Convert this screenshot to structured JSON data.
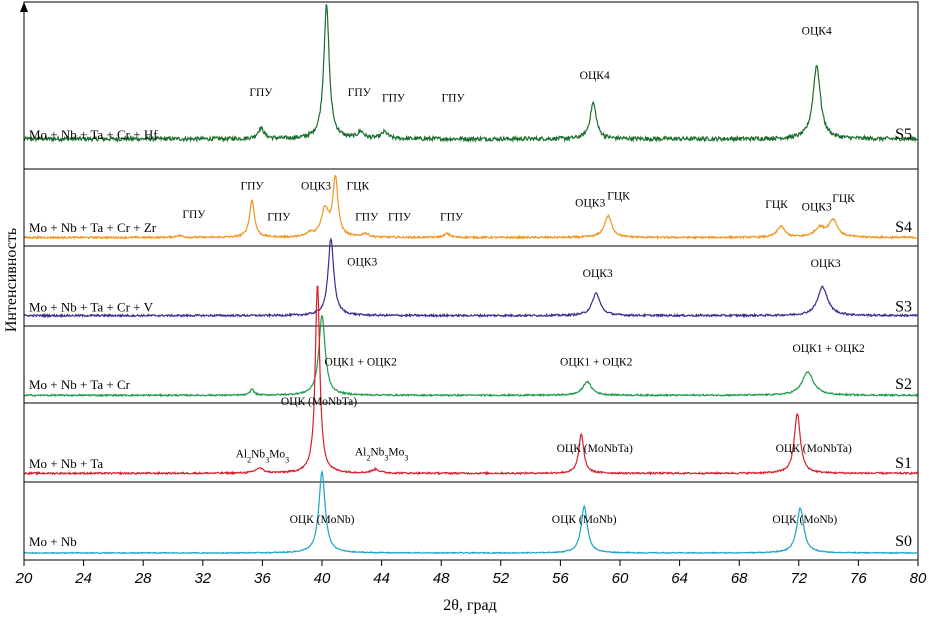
{
  "chart_data": {
    "type": "line",
    "xlabel": "2θ, град",
    "ylabel": "Интенсивность",
    "xlim": [
      20,
      80
    ],
    "xticks": [
      20,
      24,
      28,
      32,
      36,
      40,
      44,
      48,
      52,
      56,
      60,
      64,
      68,
      72,
      76,
      80
    ],
    "panels": [
      {
        "id": "S5",
        "composition": "Mo + Nb + Ta + Cr + Hf",
        "color": "#1a6e2e",
        "baseline": 0.18,
        "noise": 0.015,
        "peaks": [
          {
            "x": 35.9,
            "h": 0.08,
            "w": 0.25
          },
          {
            "x": 40.3,
            "h": 1.0,
            "w": 0.22
          },
          {
            "x": 42.6,
            "h": 0.05,
            "w": 0.25
          },
          {
            "x": 44.2,
            "h": 0.05,
            "w": 0.25
          },
          {
            "x": 58.2,
            "h": 0.27,
            "w": 0.25
          },
          {
            "x": 73.2,
            "h": 0.55,
            "w": 0.3
          }
        ],
        "annotations": [
          {
            "text": "ОЦК4",
            "x": 40.3,
            "h": 1.06
          },
          {
            "text": "ГПУ",
            "x": 35.9,
            "h": 0.32
          },
          {
            "text": "ГПУ",
            "x": 42.5,
            "h": 0.32
          },
          {
            "text": "ГПУ",
            "x": 44.8,
            "h": 0.28
          },
          {
            "text": "ГПУ",
            "x": 48.8,
            "h": 0.28
          },
          {
            "text": "ОЦК4",
            "x": 58.3,
            "h": 0.45
          },
          {
            "text": "ОЦК4",
            "x": 73.2,
            "h": 0.78
          }
        ]
      },
      {
        "id": "S4",
        "composition": "Mo + Nb + Ta + Cr + Zr",
        "color": "#f0941e",
        "baseline": 0.11,
        "noise": 0.015,
        "peaks": [
          {
            "x": 30.4,
            "h": 0.03,
            "w": 0.3
          },
          {
            "x": 35.3,
            "h": 0.6,
            "w": 0.2
          },
          {
            "x": 39.2,
            "h": 0.06,
            "w": 0.25
          },
          {
            "x": 40.2,
            "h": 0.45,
            "w": 0.3
          },
          {
            "x": 40.9,
            "h": 0.95,
            "w": 0.2
          },
          {
            "x": 42.9,
            "h": 0.06,
            "w": 0.25
          },
          {
            "x": 48.4,
            "h": 0.06,
            "w": 0.25
          },
          {
            "x": 59.2,
            "h": 0.35,
            "w": 0.3
          },
          {
            "x": 70.8,
            "h": 0.18,
            "w": 0.3
          },
          {
            "x": 73.4,
            "h": 0.15,
            "w": 0.4
          },
          {
            "x": 74.3,
            "h": 0.28,
            "w": 0.35
          }
        ],
        "annotations": [
          {
            "text": "ГПУ",
            "x": 35.3,
            "h": 0.78
          },
          {
            "text": "ГПУ",
            "x": 31.4,
            "h": 0.32
          },
          {
            "text": "ГПУ",
            "x": 37.1,
            "h": 0.28
          },
          {
            "text": "ОЦК3",
            "x": 39.6,
            "h": 0.78
          },
          {
            "text": "ГЦК",
            "x": 42.4,
            "h": 0.78
          },
          {
            "text": "ГПУ",
            "x": 43.0,
            "h": 0.28
          },
          {
            "text": "ГПУ",
            "x": 45.2,
            "h": 0.28
          },
          {
            "text": "ГПУ",
            "x": 48.7,
            "h": 0.28
          },
          {
            "text": "ОЦК3",
            "x": 58.0,
            "h": 0.5
          },
          {
            "text": "ГЦК",
            "x": 59.9,
            "h": 0.62
          },
          {
            "text": "ГЦК",
            "x": 70.5,
            "h": 0.48
          },
          {
            "text": "ОЦК3",
            "x": 73.2,
            "h": 0.44
          },
          {
            "text": "ГЦК",
            "x": 75.0,
            "h": 0.58
          }
        ]
      },
      {
        "id": "S3",
        "composition": "Mo + Nb + Ta + Cr + V",
        "color": "#3d2a8e",
        "baseline": 0.13,
        "noise": 0.015,
        "peaks": [
          {
            "x": 40.6,
            "h": 1.2,
            "w": 0.23
          },
          {
            "x": 58.4,
            "h": 0.35,
            "w": 0.32
          },
          {
            "x": 73.6,
            "h": 0.45,
            "w": 0.4
          }
        ],
        "annotations": [
          {
            "text": "ОЦК3",
            "x": 42.7,
            "h": 0.78
          },
          {
            "text": "ОЦК3",
            "x": 58.5,
            "h": 0.6
          },
          {
            "text": "ОЦК3",
            "x": 73.8,
            "h": 0.76
          }
        ]
      },
      {
        "id": "S2",
        "composition": "Mo + Nb + Ta + Cr",
        "color": "#1a9a4a",
        "baseline": 0.1,
        "noise": 0.012,
        "peaks": [
          {
            "x": 35.3,
            "h": 0.1,
            "w": 0.15
          },
          {
            "x": 40.0,
            "h": 1.3,
            "w": 0.25
          },
          {
            "x": 57.8,
            "h": 0.22,
            "w": 0.35
          },
          {
            "x": 72.6,
            "h": 0.38,
            "w": 0.45
          }
        ],
        "annotations": [
          {
            "text": "ОЦК1 + ОЦК2",
            "x": 42.6,
            "h": 0.48
          },
          {
            "text": "ОЦК1 + ОЦК2",
            "x": 58.4,
            "h": 0.48
          },
          {
            "text": "ОЦК1 + ОЦК2",
            "x": 74.0,
            "h": 0.7
          }
        ]
      },
      {
        "id": "S1",
        "composition": "Mo + Nb + Ta",
        "color": "#d61f2c",
        "baseline": 0.11,
        "noise": 0.013,
        "peaks": [
          {
            "x": 35.8,
            "h": 0.08,
            "w": 0.3
          },
          {
            "x": 39.7,
            "h": 3.0,
            "w": 0.18
          },
          {
            "x": 43.6,
            "h": 0.06,
            "w": 0.3
          },
          {
            "x": 57.4,
            "h": 0.62,
            "w": 0.2
          },
          {
            "x": 71.9,
            "h": 0.95,
            "w": 0.24
          }
        ],
        "annotations": [
          {
            "text": "ОЦК (MoNbTa)",
            "x": 39.8,
            "h": 1.08
          },
          {
            "text": "Al2Nb3Mo3",
            "x": 36.0,
            "h": 0.25,
            "sub": true
          },
          {
            "text": "Al2Nb3Mo3",
            "x": 44.0,
            "h": 0.28,
            "sub": true
          },
          {
            "text": "ОЦК (MoNbTa)",
            "x": 58.3,
            "h": 0.34
          },
          {
            "text": "ОЦК (MoNbTa)",
            "x": 73.0,
            "h": 0.34
          }
        ]
      },
      {
        "id": "S0",
        "composition": "Mo + Nb",
        "color": "#19a6c6",
        "baseline": 0.09,
        "noise": 0.008,
        "peaks": [
          {
            "x": 40.0,
            "h": 1.3,
            "w": 0.25
          },
          {
            "x": 57.6,
            "h": 0.75,
            "w": 0.25
          },
          {
            "x": 72.1,
            "h": 0.72,
            "w": 0.28
          }
        ],
        "annotations": [
          {
            "text": "ОЦК (MoNb)",
            "x": 40.0,
            "h": 0.48
          },
          {
            "text": "ОЦК (MoNb)",
            "x": 57.6,
            "h": 0.48
          },
          {
            "text": "ОЦК (MoNb)",
            "x": 72.4,
            "h": 0.48
          }
        ]
      }
    ]
  }
}
